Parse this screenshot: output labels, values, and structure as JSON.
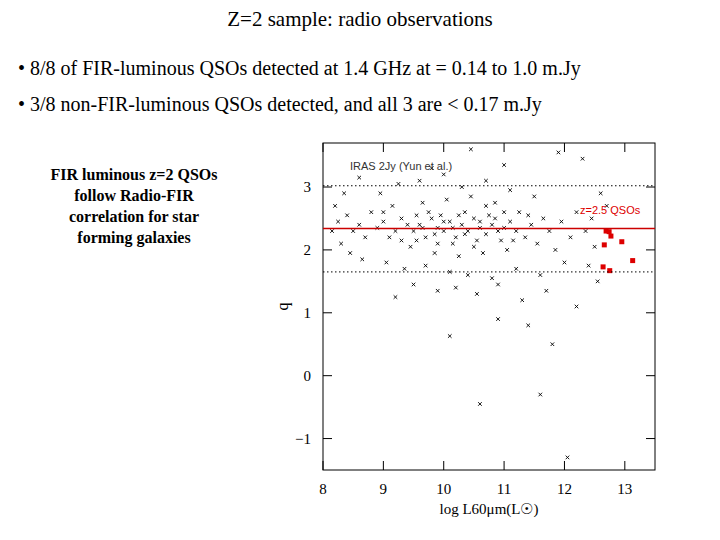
{
  "slide": {
    "title": "Z=2 sample: radio observations",
    "bullets": [
      "• 8/8 of FIR-luminous QSOs  detected at 1.4 GHz at = 0.14 to 1.0 m.Jy",
      "• 3/8 non-FIR-luminous QSOs detected, and all 3 are < 0.17 m.Jy"
    ],
    "caption": [
      "FIR luminous z=2 QSOs",
      "follow Radio-FIR",
      "correlation for star",
      "forming galaxies"
    ]
  },
  "chart_data": {
    "type": "scatter",
    "x_label": "log L60μm(L☉)",
    "y_label": "q",
    "xlim": [
      8,
      13.5
    ],
    "ylim": [
      -1.5,
      3.7
    ],
    "xticks": [
      8,
      9,
      10,
      11,
      12,
      13
    ],
    "yticks": [
      -1,
      0,
      1,
      2,
      3
    ],
    "grid": false,
    "series": [
      {
        "name": "IRAS 2Jy (Yun et al.)",
        "color": "#000000",
        "marker": "x",
        "x": [
          9.5,
          9.6,
          9.7,
          9.8,
          9.9,
          10.0,
          10.1,
          10.2,
          10.3,
          10.4,
          10.5,
          10.6,
          10.7,
          10.8,
          10.9,
          11.0,
          9.55,
          9.75,
          9.95,
          10.15,
          10.35,
          10.55,
          10.75,
          10.95,
          11.1,
          11.2,
          9.4,
          9.3,
          9.2,
          9.1,
          9.0,
          8.9,
          8.8,
          8.7,
          8.6,
          8.5,
          8.4,
          8.3,
          9.15,
          9.45,
          9.65,
          9.85,
          10.05,
          10.25,
          10.45,
          10.65,
          10.85,
          11.05,
          11.25,
          11.35,
          11.45,
          11.55,
          11.65,
          11.75,
          11.85,
          11.95,
          12.1,
          12.2,
          12.35,
          8.95,
          9.25,
          9.6,
          10.0,
          10.3,
          10.7,
          11.1,
          11.5,
          8.2,
          8.35,
          8.45,
          8.65,
          9.05,
          9.35,
          9.7,
          10.1,
          10.4,
          10.8,
          11.2,
          11.6,
          12.0,
          12.4,
          9.5,
          9.9,
          10.2,
          10.55,
          10.9,
          11.3,
          11.7,
          9.2,
          10.1,
          10.9,
          11.4,
          11.8,
          11.6,
          10.6,
          12.05,
          12.5,
          12.3,
          11.9,
          10.45,
          12.6,
          12.45,
          12.7,
          12.55,
          12.2,
          11.0,
          9.8,
          8.6,
          8.25,
          8.15,
          9.0,
          9.3,
          9.55,
          9.9,
          10.25,
          10.5,
          10.7,
          11.0,
          11.15,
          11.4,
          10.35,
          10.0,
          9.65,
          10.6,
          10.85,
          10.15,
          9.85
        ],
        "values": [
          2.3,
          2.4,
          2.2,
          2.5,
          2.35,
          2.3,
          2.45,
          2.2,
          2.4,
          2.3,
          2.5,
          2.35,
          2.25,
          2.4,
          2.3,
          2.35,
          2.15,
          2.6,
          2.55,
          2.1,
          2.6,
          2.15,
          2.55,
          2.15,
          2.45,
          2.3,
          2.4,
          2.5,
          2.3,
          2.2,
          2.45,
          2.35,
          2.6,
          2.2,
          2.4,
          2.3,
          2.55,
          2.1,
          2.7,
          2.05,
          2.75,
          1.95,
          2.8,
          1.9,
          2.85,
          1.95,
          2.75,
          2.0,
          2.6,
          2.2,
          2.4,
          2.1,
          2.5,
          2.3,
          2.0,
          2.45,
          2.2,
          2.6,
          2.3,
          2.9,
          3.05,
          3.1,
          3.2,
          3.0,
          3.1,
          2.95,
          2.85,
          2.7,
          2.9,
          1.95,
          1.85,
          1.8,
          1.7,
          1.75,
          1.65,
          1.6,
          1.55,
          1.7,
          1.6,
          1.8,
          1.75,
          1.45,
          1.35,
          1.4,
          1.3,
          1.45,
          1.2,
          1.35,
          1.25,
          0.63,
          0.9,
          0.8,
          0.5,
          -0.3,
          -0.45,
          -1.3,
          2.05,
          3.45,
          3.55,
          3.6,
          2.9,
          2.5,
          2.7,
          1.5,
          1.1,
          3.35,
          3.3,
          3.15,
          2.45,
          2.3,
          2.6,
          2.15,
          2.55,
          2.1,
          2.55,
          2.05,
          2.7,
          2.6,
          2.15,
          2.55,
          2.25,
          2.45,
          2.35,
          2.45,
          2.5,
          2.35,
          2.25
        ]
      },
      {
        "name": "z=2.5 QSOs",
        "color": "#dd0000",
        "marker": "square",
        "x": [
          12.69,
          12.74,
          12.77,
          12.95,
          12.66,
          13.13,
          12.64,
          12.75
        ],
        "values": [
          2.3,
          2.29,
          2.22,
          2.13,
          2.08,
          1.83,
          1.73,
          1.67
        ]
      },
      {
        "type": "line",
        "color": "#cc0000",
        "line_style": "solid",
        "x": [
          8,
          13.5
        ],
        "values": [
          2.34,
          2.34
        ]
      },
      {
        "type": "line",
        "color": "#000000",
        "line_style": "dotted",
        "x": [
          8,
          13.5
        ],
        "values": [
          3.02,
          3.02
        ]
      },
      {
        "type": "line",
        "color": "#000000",
        "line_style": "dotted",
        "x": [
          8,
          13.5
        ],
        "values": [
          1.65,
          1.65
        ]
      }
    ]
  }
}
